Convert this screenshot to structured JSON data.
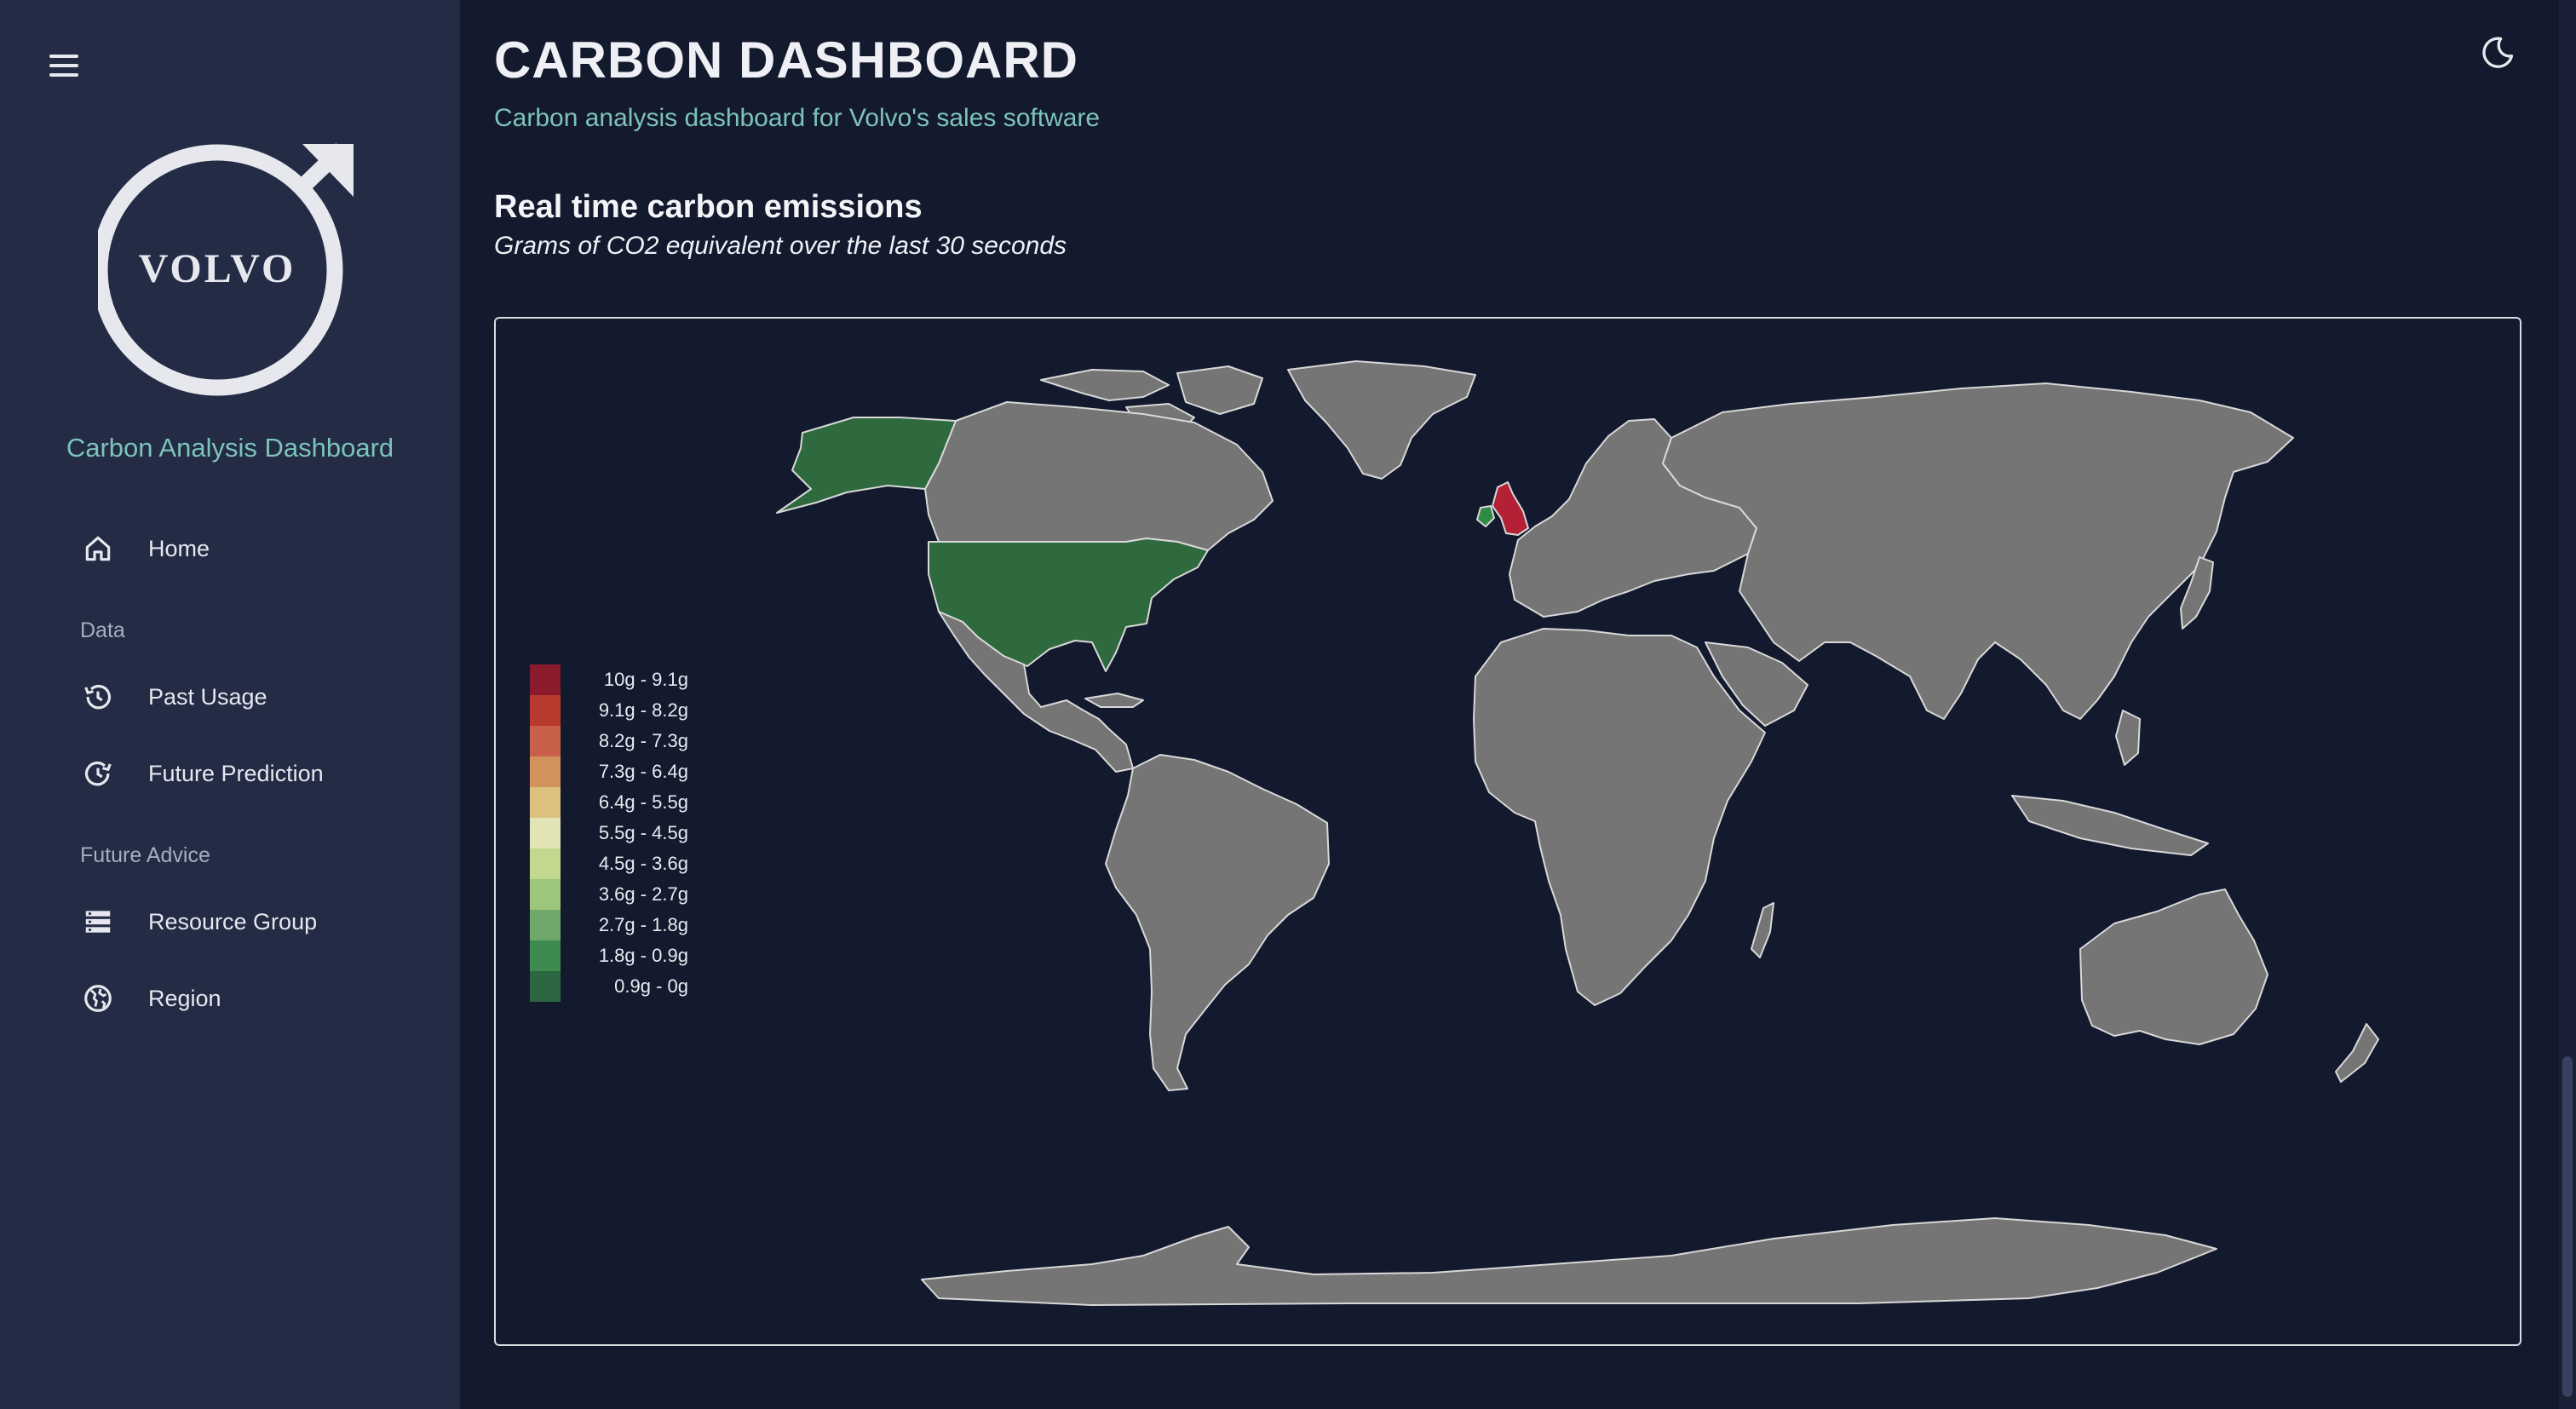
{
  "sidebar": {
    "brand_title": "Carbon Analysis Dashboard",
    "logo_text": "VOLVO",
    "items": [
      {
        "label": "Home",
        "icon": "home-icon"
      },
      {
        "label": "Past Usage",
        "icon": "history-icon"
      },
      {
        "label": "Future Prediction",
        "icon": "future-icon"
      },
      {
        "label": "Resource Group",
        "icon": "server-icon"
      },
      {
        "label": "Region",
        "icon": "globe-icon"
      }
    ],
    "sections": [
      "Data",
      "Future Advice"
    ]
  },
  "header": {
    "title": "CARBON DASHBOARD",
    "subtitle": "Carbon analysis dashboard for Volvo's sales software",
    "theme_icon": "moon-icon"
  },
  "map_section": {
    "title": "Real time carbon emissions",
    "subtitle": "Grams of CO2 equivalent over the last 30 seconds"
  },
  "legend": [
    {
      "label": "10g - 9.1g",
      "color": "#8b1a2c"
    },
    {
      "label": "9.1g - 8.2g",
      "color": "#b63a2e"
    },
    {
      "label": "8.2g - 7.3g",
      "color": "#c9604a"
    },
    {
      "label": "7.3g - 6.4g",
      "color": "#d1925c"
    },
    {
      "label": "6.4g - 5.5g",
      "color": "#dcc17e"
    },
    {
      "label": "5.5g - 4.5g",
      "color": "#e3e4b6"
    },
    {
      "label": "4.5g - 3.6g",
      "color": "#c2d88f"
    },
    {
      "label": "3.6g - 2.7g",
      "color": "#9cc67b"
    },
    {
      "label": "2.7g - 1.8g",
      "color": "#6fa86a"
    },
    {
      "label": "1.8g - 0.9g",
      "color": "#3f8a4e"
    },
    {
      "label": "0.9g - 0g",
      "color": "#2b6640"
    }
  ],
  "map_colors": {
    "default": "#757575",
    "usa": "#2e6a3e",
    "uk": "#b42036",
    "ireland": "#2e8a45",
    "border": "#d8d8d8"
  },
  "colors": {
    "background": "#141a2e",
    "sidebar": "#232b45",
    "accent": "#7cc3b8"
  }
}
